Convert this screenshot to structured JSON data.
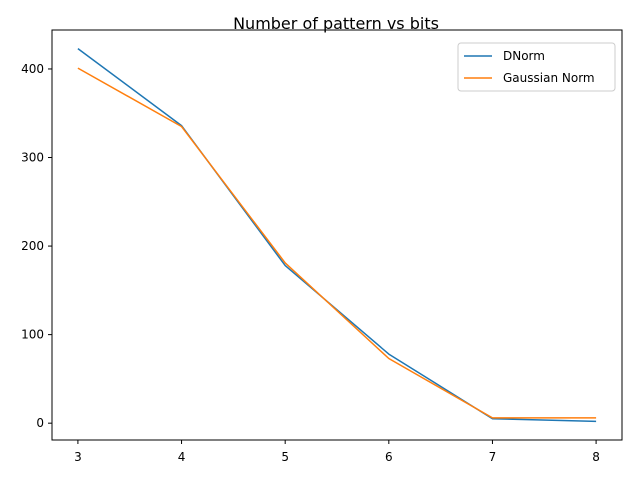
{
  "chart_data": {
    "type": "line",
    "title": "Number of pattern vs bits",
    "xlabel": "",
    "ylabel": "",
    "x": [
      3,
      4,
      5,
      6,
      7,
      8
    ],
    "xticks": [
      3,
      4,
      5,
      6,
      7,
      8
    ],
    "yticks": [
      0,
      100,
      200,
      300,
      400
    ],
    "xlim": [
      2.75,
      8.25
    ],
    "ylim": [
      -19,
      444
    ],
    "grid": false,
    "legend_position": "top-right",
    "series": [
      {
        "name": "DNorm",
        "color": "#1f77b4",
        "values": [
          423,
          336,
          178,
          78,
          5,
          2
        ]
      },
      {
        "name": "Gaussian Norm",
        "color": "#ff7f0e",
        "values": [
          401,
          335,
          181,
          73,
          6,
          6
        ]
      }
    ]
  }
}
